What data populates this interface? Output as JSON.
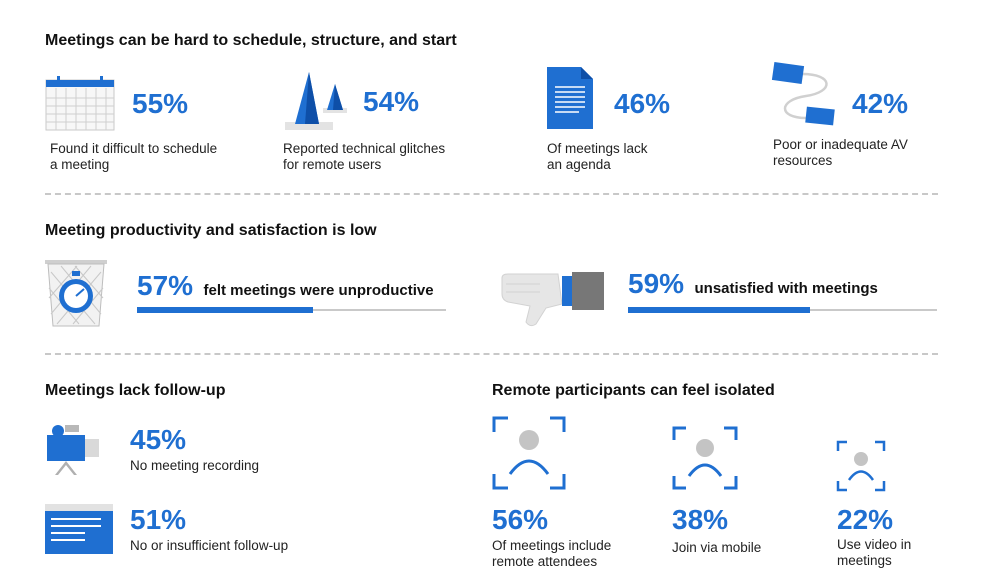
{
  "section1": {
    "heading": "Meetings can be hard to schedule, structure, and start",
    "items": [
      {
        "icon": "calendar-icon",
        "percent": "55%",
        "line1": "Found it difficult to schedule",
        "line2": "a meeting"
      },
      {
        "icon": "traffic-cones-icon",
        "percent": "54%",
        "line1": "Reported technical glitches",
        "line2": "for remote users"
      },
      {
        "icon": "document-icon",
        "percent": "46%",
        "line1": "Of meetings lack",
        "line2": "an agenda"
      },
      {
        "icon": "av-cable-icon",
        "percent": "42%",
        "line1": "Poor or inadequate AV",
        "line2": "resources"
      }
    ]
  },
  "section2": {
    "heading": "Meeting productivity and satisfaction is low",
    "items": [
      {
        "icon": "stopwatch-in-trash-icon",
        "percent": "57%",
        "label": "felt meetings were unproductive",
        "fill": 0.57
      },
      {
        "icon": "thumbs-down-icon",
        "percent": "59%",
        "label": "unsatisfied with meetings",
        "fill": 0.59
      }
    ]
  },
  "section3": {
    "heading": "Meetings lack follow-up",
    "items": [
      {
        "icon": "video-camera-icon",
        "percent": "45%",
        "label": "No meeting recording"
      },
      {
        "icon": "browser-window-icon",
        "percent": "51%",
        "label": "No or insufficient follow-up"
      }
    ]
  },
  "section4": {
    "heading": "Remote participants can feel isolated",
    "items": [
      {
        "icon": "person-frame-icon",
        "percent": "56%",
        "line1": "Of meetings include",
        "line2": "remote attendees"
      },
      {
        "icon": "person-frame-icon",
        "percent": "38%",
        "line1": "Join via mobile",
        "line2": ""
      },
      {
        "icon": "person-frame-icon",
        "percent": "22%",
        "line1": "Use video in",
        "line2": "meetings"
      }
    ]
  },
  "colors": {
    "accent": "#1f6fd1",
    "track": "#c9c9c9",
    "divider": "#c8c8c8"
  }
}
